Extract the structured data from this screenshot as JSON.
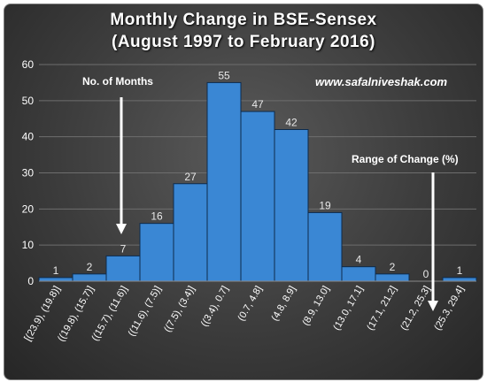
{
  "chart_data": {
    "type": "bar",
    "title": "Monthly Change in BSE-Sensex",
    "subtitle": "(August 1997 to February 2016)",
    "categories": [
      "[(23.9), (19.8)]",
      "((19.8), (15.7)]",
      "((15.7), (11.6)]",
      "((11.6), (7.5)]",
      "((7.5), (3.4)]",
      "((3.4), 0.7]",
      "(0.7, 4.8]",
      "(4.8, 8.9]",
      "(8.9, 13.0]",
      "(13.0, 17.1]",
      "(17.1, 21.2]",
      "(21.2, 25.3]",
      "(25.3, 29.4]"
    ],
    "values": [
      1,
      2,
      7,
      16,
      27,
      55,
      47,
      42,
      19,
      4,
      2,
      0,
      1
    ],
    "ylim": [
      0,
      60
    ],
    "yticks": [
      0,
      10,
      20,
      30,
      40,
      50,
      60
    ],
    "grid": true,
    "bar_color": "#3a87d4",
    "annotations": {
      "y_note": "No. of Months",
      "x_note": "Range of Change (%)",
      "website": "www.safalniveshak.com"
    }
  }
}
